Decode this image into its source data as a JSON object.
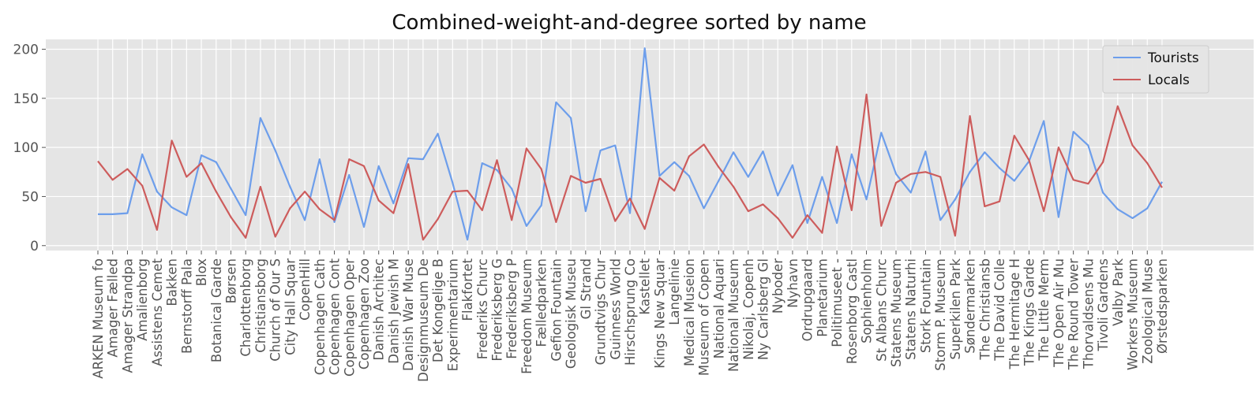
{
  "chart_data": {
    "type": "line",
    "title": "Combined-weight-and-degree sorted by name",
    "xlabel": "",
    "ylabel": "",
    "ylim": [
      -5,
      210
    ],
    "yticks": [
      0,
      50,
      100,
      150,
      200
    ],
    "grid": true,
    "legend_position": "top-right",
    "categories": [
      "ARKEN Museum fo",
      "Amager Fælled",
      "Amager Strandpa",
      "Amalienborg",
      "Assistens Cemet",
      "Bakken",
      "Bernstorff Pala",
      "Blox",
      "Botanical Garde",
      "Børsen",
      "Charlottenborg",
      "Christiansborg",
      "Church of Our S",
      "City Hall Squar",
      "CopenHill",
      "Copenhagen Cath",
      "Copenhagen Cont",
      "Copenhagen Oper",
      "Copenhagen Zoo",
      "Danish Architec",
      "Danish Jewish M",
      "Danish War Muse",
      "Designmuseum De",
      "Det Kongelige B",
      "Experimentarium",
      "Flakfortet",
      "Frederiks Churc",
      "Frederiksberg G",
      "Frederiksberg P",
      "Freedom Museum",
      "Fælledparken",
      "Gefion Fountain",
      "Geologisk Museu",
      "Gl Strand",
      "Grundtvigs Chur",
      "Guinness World",
      "Hirschsprung Co",
      "Kastellet",
      "Kings New Squar",
      "Langelinie",
      "Medical Museion",
      "Museum of Copen",
      "National Aquari",
      "National Museum",
      "Nikolaj, Copenh",
      "Ny Carlsberg Gl",
      "Nyboder",
      "Nyhavn",
      "Ordrupgaard",
      "Planetarium",
      "Politimuseet -",
      "Rosenborg Castl",
      "Sophienholm",
      "St Albans Churc",
      "Statens Museum",
      "Statens Naturhi",
      "Stork Fountain",
      "Storm P. Museum",
      "Superkilen Park",
      "Søndermarken",
      "The Christiansb",
      "The David Colle",
      "The Hermitage H",
      "The Kings Garde",
      "The Little Merm",
      "The Open Air Mu",
      "The Round Tower",
      "Thorvaldsens Mu",
      "Tivoli Gardens",
      "Valby Park",
      "Workers Museum",
      "Zoological Muse",
      "Ørstedsparken"
    ],
    "series": [
      {
        "name": "Tourists",
        "color": "#6d9eeb",
        "values": [
          32,
          32,
          33,
          93,
          55,
          39,
          31,
          92,
          85,
          58,
          31,
          130,
          97,
          60,
          26,
          88,
          24,
          72,
          19,
          81,
          43,
          89,
          88,
          114,
          64,
          6,
          84,
          77,
          58,
          20,
          41,
          146,
          130,
          35,
          97,
          102,
          33,
          201,
          71,
          85,
          71,
          38,
          66,
          95,
          70,
          96,
          51,
          82,
          23,
          70,
          23,
          93,
          47,
          115,
          73,
          54,
          96,
          26,
          47,
          75,
          95,
          79,
          66,
          86,
          127,
          29,
          116,
          102,
          54,
          37,
          28,
          38,
          65
        ]
      },
      {
        "name": "Locals",
        "color": "#cd5c5c",
        "values": [
          86,
          67,
          78,
          61,
          16,
          107,
          70,
          84,
          55,
          29,
          8,
          60,
          9,
          38,
          55,
          37,
          26,
          88,
          81,
          46,
          33,
          83,
          6,
          27,
          55,
          56,
          36,
          87,
          26,
          99,
          78,
          24,
          71,
          64,
          68,
          25,
          48,
          17,
          69,
          56,
          91,
          103,
          80,
          60,
          35,
          42,
          28,
          8,
          31,
          13,
          101,
          36,
          154,
          20,
          64,
          73,
          75,
          70,
          10,
          132,
          40,
          45,
          112,
          87,
          35,
          100,
          67,
          63,
          85,
          142,
          102,
          84,
          59
        ]
      }
    ]
  }
}
